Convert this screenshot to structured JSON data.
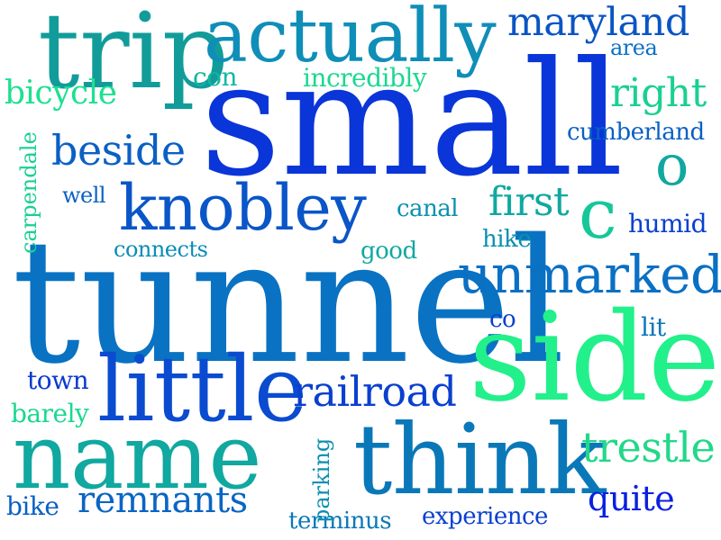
{
  "words": [
    {
      "text": "small",
      "color": "#0a35d8"
    },
    {
      "text": "tunnel",
      "color": "#0a72c2"
    },
    {
      "text": "side",
      "color": "#22f08a"
    },
    {
      "text": "trip",
      "color": "#119c9a"
    },
    {
      "text": "actually",
      "color": "#0f8eb8"
    },
    {
      "text": "think",
      "color": "#0a78b8"
    },
    {
      "text": "little",
      "color": "#0a4bd0"
    },
    {
      "text": "name",
      "color": "#10a8a0"
    },
    {
      "text": "knobley",
      "color": "#0a55c8"
    },
    {
      "text": "unmarked",
      "color": "#0a70c4"
    },
    {
      "text": "railroad",
      "color": "#0a40d0"
    },
    {
      "text": "maryland",
      "color": "#0a55c4"
    },
    {
      "text": "remnants",
      "color": "#0a65c4"
    },
    {
      "text": "trestle",
      "color": "#22d888"
    },
    {
      "text": "o",
      "color": "#10a8a0"
    },
    {
      "text": "c",
      "color": "#14c898"
    },
    {
      "text": "right",
      "color": "#1ad090"
    },
    {
      "text": "beside",
      "color": "#0a60c4"
    },
    {
      "text": "first",
      "color": "#10a8a0"
    },
    {
      "text": "bicycle",
      "color": "#1ee090"
    },
    {
      "text": "quite",
      "color": "#0a20e0"
    },
    {
      "text": "cumberland",
      "color": "#0a60c4"
    },
    {
      "text": "experience",
      "color": "#0a40d0"
    },
    {
      "text": "humid",
      "color": "#0a40d0"
    },
    {
      "text": "incredibly",
      "color": "#1ad890"
    },
    {
      "text": "terminus",
      "color": "#0a78b8"
    },
    {
      "text": "connects",
      "color": "#0a8cb8"
    },
    {
      "text": "canal",
      "color": "#0a90b0"
    },
    {
      "text": "town",
      "color": "#0a3ad0"
    },
    {
      "text": "barely",
      "color": "#1ad890"
    },
    {
      "text": "bike",
      "color": "#0a60c4"
    },
    {
      "text": "con",
      "color": "#10b8a0"
    },
    {
      "text": "area",
      "color": "#0a70c4"
    },
    {
      "text": "well",
      "color": "#0a60c4"
    },
    {
      "text": "good",
      "color": "#10a8a0"
    },
    {
      "text": "hike",
      "color": "#0a90b0"
    },
    {
      "text": "co",
      "color": "#0a40d0"
    },
    {
      "text": "lit",
      "color": "#0a78b8"
    },
    {
      "text": "carpendale",
      "color": "#1ad090"
    },
    {
      "text": "parking",
      "color": "#0a90b0"
    }
  ]
}
